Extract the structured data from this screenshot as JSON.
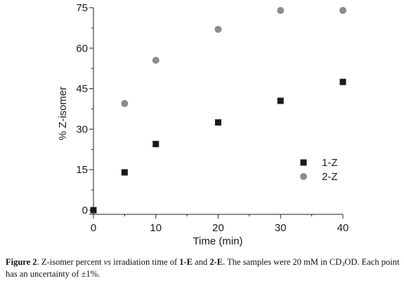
{
  "chart_data": {
    "type": "scatter",
    "xlabel": "Time (min)",
    "ylabel": "% Z-isomer",
    "xlim": [
      0,
      40
    ],
    "ylim": [
      0,
      75
    ],
    "xticks": [
      0,
      10,
      20,
      30,
      40
    ],
    "yticks": [
      0,
      15,
      30,
      45,
      60,
      75
    ],
    "legend_position": "right",
    "series": [
      {
        "name": "1-Z",
        "marker": "square",
        "color": "#1a1a1a",
        "points": [
          [
            0,
            0
          ],
          [
            5,
            14
          ],
          [
            10,
            24.5
          ],
          [
            20,
            32.5
          ],
          [
            30,
            40.5
          ],
          [
            40,
            47.5
          ]
        ]
      },
      {
        "name": "2-Z",
        "marker": "circle",
        "color": "#8c8c8c",
        "points": [
          [
            5,
            39.5
          ],
          [
            10,
            55.5
          ],
          [
            20,
            67
          ],
          [
            30,
            74
          ],
          [
            40,
            74
          ]
        ]
      }
    ]
  },
  "caption": {
    "label": "Figure 2",
    "text_1": ". Z-isomer percent ",
    "vs": "vs",
    "text_2": " irradiation time of ",
    "compound_1": "1-E",
    "text_3": " and ",
    "compound_2": "2-E",
    "text_4": ". The samples were 20 mM in CD",
    "sub": "3",
    "text_5": "OD. Each point has an uncertainty of ±1%."
  }
}
